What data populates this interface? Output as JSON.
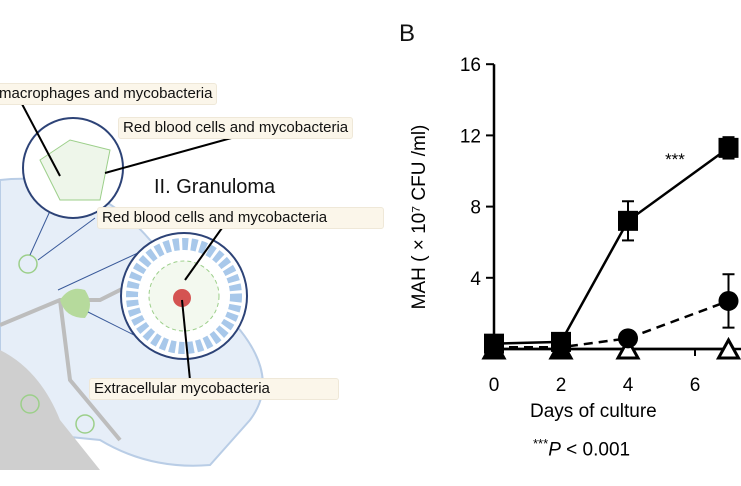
{
  "panel_label": "B",
  "diagram": {
    "labels": {
      "macrophages": "macrophages and mycobacteria",
      "rbc_top": "Red blood cells and mycobacteria",
      "granuloma": "II. Granuloma",
      "rbc_granuloma": "Red blood cells and mycobacteria",
      "extracellular": "Extracellular mycobacteria"
    }
  },
  "chart_data": {
    "type": "line",
    "xlabel": "Days of culture",
    "ylabel": "MAH ( × 10⁷ CFU /ml)",
    "x_ticks": [
      "0",
      "2",
      "4",
      "6"
    ],
    "y_ticks": [
      "4",
      "8",
      "12",
      "16"
    ],
    "xlim": [
      0,
      8
    ],
    "ylim": [
      0,
      16
    ],
    "annotation": "***",
    "footnote_stars": "***",
    "footnote_p": "P",
    "footnote_rest": " < 0.001",
    "series": [
      {
        "marker": "square",
        "line": "solid",
        "x": [
          0,
          2,
          4,
          7
        ],
        "y": [
          0.3,
          0.4,
          7.2,
          11.3
        ],
        "err": [
          0,
          0,
          1.1,
          0.6
        ]
      },
      {
        "marker": "circle",
        "line": "dashed",
        "x": [
          0,
          2,
          4,
          7
        ],
        "y": [
          0.1,
          0.1,
          0.6,
          2.7
        ],
        "err": [
          0,
          0,
          0,
          1.5
        ]
      },
      {
        "marker": "triangle-open",
        "line": "solid",
        "x": [
          0,
          2,
          4,
          7
        ],
        "y": [
          0,
          0,
          0,
          0
        ],
        "err": [
          0,
          0,
          0,
          0
        ]
      }
    ]
  }
}
